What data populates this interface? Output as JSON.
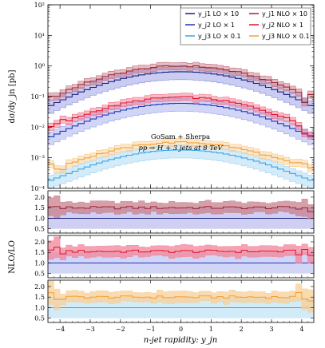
{
  "chart_data": [
    {
      "type": "line",
      "panel": "main",
      "ylabel": "dσ/dy_jn [pb]",
      "yscale": "log",
      "ylim": [
        0.0001,
        100
      ],
      "xlim": [
        -4.4,
        4.4
      ],
      "yticks": [
        "10⁻⁴",
        "10⁻³",
        "10⁻²",
        "10⁻¹",
        "10⁰",
        "10¹",
        "10²"
      ],
      "annotations": [
        "GoSam + Sherpa",
        "pp → H + 3 jets at 8 TeV"
      ],
      "legend_position": "top-right",
      "legend": [
        {
          "label": "y_j1 LO × 10",
          "color": "#1c1f80"
        },
        {
          "label": "y_j1 NLO × 10",
          "color": "#9b2335"
        },
        {
          "label": "y_j2 LO × 1",
          "color": "#2233bb"
        },
        {
          "label": "y_j2 NLO × 1",
          "color": "#e0102e"
        },
        {
          "label": "y_j3 LO × 0.1",
          "color": "#3ba4e0"
        },
        {
          "label": "y_j3 NLO × 0.1",
          "color": "#f2a033"
        }
      ],
      "series": [
        {
          "name": "y_j1 LO × 10",
          "kind": "LO",
          "peak": 0.65,
          "tail": 0.005,
          "shape": 1.15,
          "color": "#1c1f80",
          "band": "#8a8fe0"
        },
        {
          "name": "y_j1 NLO × 10",
          "kind": "NLO",
          "peak": 1.0,
          "tail": 0.018,
          "shape": 1.1,
          "color": "#9b2335",
          "band": "#c46a78"
        },
        {
          "name": "y_j2 LO × 1",
          "kind": "LO",
          "peak": 0.06,
          "tail": 0.0006,
          "shape": 1.15,
          "color": "#2233bb",
          "band": "#9aa3ee"
        },
        {
          "name": "y_j2 NLO × 1",
          "kind": "NLO",
          "peak": 0.095,
          "tail": 0.002,
          "shape": 1.1,
          "color": "#e0102e",
          "band": "#f06a82"
        },
        {
          "name": "y_j3 LO × 0.1",
          "kind": "LO",
          "peak": 0.0018,
          "tail": 6e-05,
          "shape": 1.15,
          "color": "#3ba4e0",
          "band": "#9fd3f3"
        },
        {
          "name": "y_j3 NLO × 0.1",
          "kind": "NLO",
          "peak": 0.0032,
          "tail": 0.0002,
          "shape": 1.1,
          "color": "#f2a033",
          "band": "#f8c98a"
        }
      ]
    },
    {
      "type": "line",
      "panel": "ratio-j1",
      "ylim": [
        0.3,
        2.3
      ],
      "yticks": [
        "0.5",
        "1.0",
        "1.5",
        "2.0"
      ],
      "ratio": 1.5,
      "color": "#9b2335",
      "band": "#c8808c",
      "lo_color": "#1c1f80",
      "lo_band": "#b9bbee"
    },
    {
      "type": "line",
      "panel": "ratio-j2",
      "ylabel": "NLO/LO",
      "ylim": [
        0.3,
        2.3
      ],
      "yticks": [
        "0.5",
        "1.0",
        "1.5",
        "2.0"
      ],
      "ratio": 1.55,
      "color": "#e0102e",
      "band": "#f2849a",
      "lo_color": "#2233bb",
      "lo_band": "#bfc4f2"
    },
    {
      "type": "line",
      "panel": "ratio-j3",
      "xlabel": "n-jet rapidity: y_jn",
      "ylim": [
        0.3,
        2.3
      ],
      "yticks": [
        "0.5",
        "1.0",
        "1.5",
        "2.0"
      ],
      "xticks": [
        "−4",
        "−3",
        "−2",
        "−1",
        "0",
        "1",
        "2",
        "3",
        "4"
      ],
      "ratio": 1.5,
      "color": "#f2a033",
      "band": "#f8cf95",
      "lo_color": "#3ba4e0",
      "lo_band": "#bde2f7"
    }
  ]
}
